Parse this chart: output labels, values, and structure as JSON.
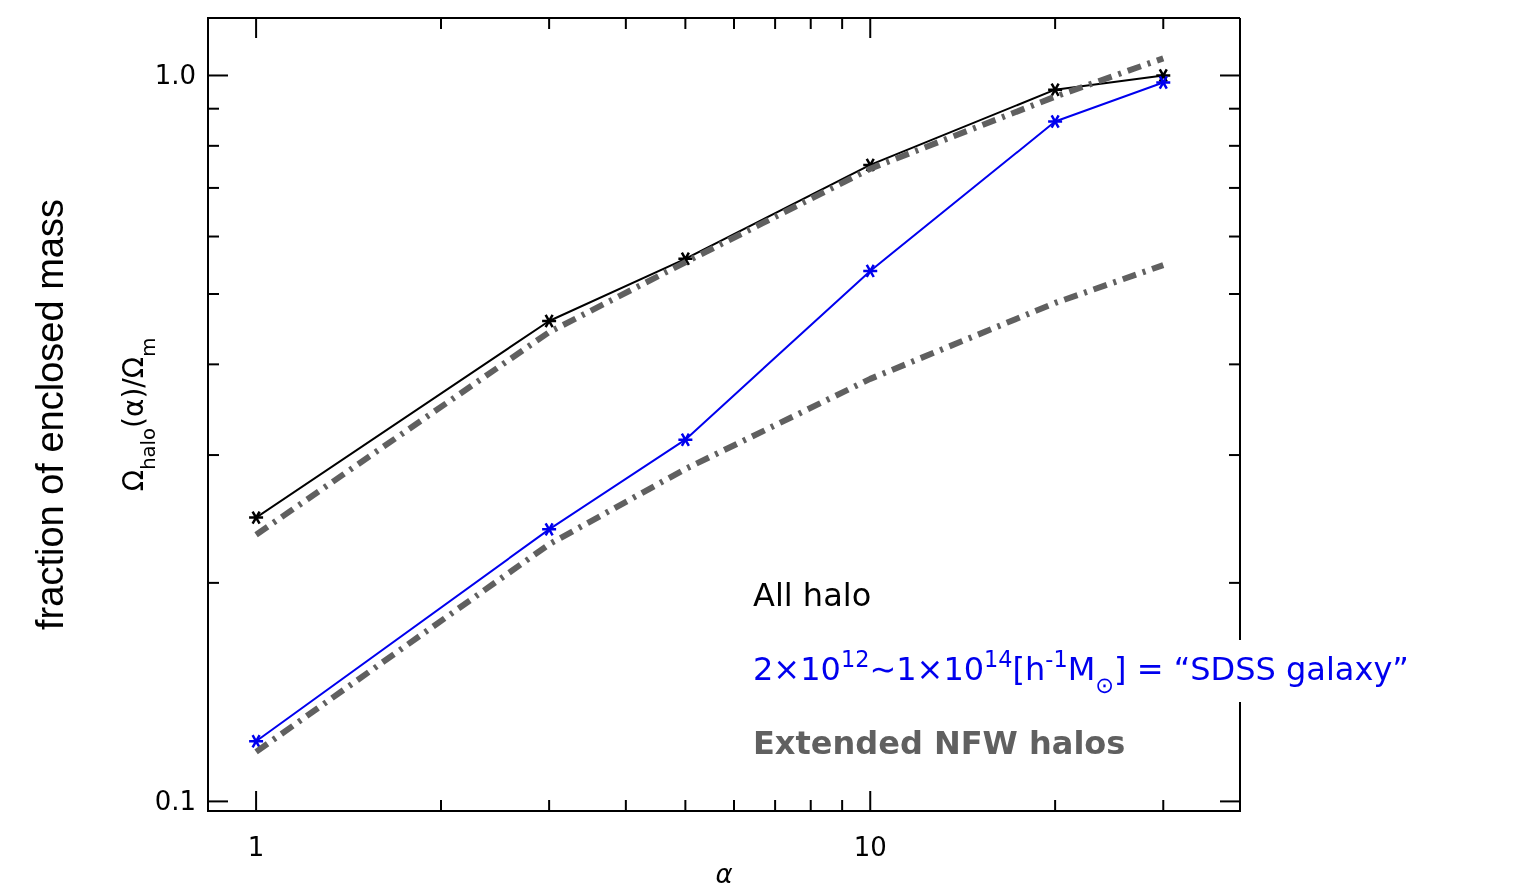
{
  "chart_data": {
    "type": "line",
    "xlabel": "α",
    "ylabel": "Ω$_{halo}$(α)/Ω$_{m}$",
    "log": "xy",
    "xlim": [
      0.835,
      40
    ],
    "ylim": [
      0.097,
      1.2
    ],
    "xticks": [
      1,
      {
        "value": 2,
        "label": null
      },
      {
        "value": 3,
        "label": null
      },
      {
        "value": 4,
        "label": null
      },
      {
        "value": 5,
        "label": null
      },
      {
        "value": 6,
        "label": null
      },
      {
        "value": 7,
        "label": null
      },
      {
        "value": 8,
        "label": null
      },
      {
        "value": 9,
        "label": null
      },
      10,
      {
        "value": 20,
        "label": null
      },
      {
        "value": 30,
        "label": null
      },
      {
        "value": 40,
        "label": null
      }
    ],
    "yticks": [
      {
        "value": 0.1,
        "label": "0.1"
      },
      {
        "value": 0.2,
        "label": null
      },
      {
        "value": 0.3,
        "label": null
      },
      {
        "value": 0.4,
        "label": null
      },
      {
        "value": 0.5,
        "label": null
      },
      {
        "value": 0.6,
        "label": null
      },
      {
        "value": 0.7,
        "label": null
      },
      {
        "value": 0.8,
        "label": null
      },
      {
        "value": 0.9,
        "label": null
      },
      {
        "value": 1,
        "label": "1.0"
      }
    ],
    "x": [
      1,
      3,
      5,
      10,
      20,
      30
    ],
    "series": [
      {
        "name": "All halo",
        "color": "#000000",
        "values": [
          0.246,
          0.459,
          0.559,
          0.753,
          0.956,
          1.0
        ],
        "marker": "cross",
        "line_style": "solid"
      },
      {
        "name": "2×10$^{12}$∼1×10$^{14}$[h$^{-1}$M$_{⊙}$] = “SDSS galaxy”",
        "color": "#0000ee",
        "values": [
          0.121,
          0.237,
          0.315,
          0.538,
          0.864,
          0.978
        ],
        "marker": "cross",
        "line_style": "solid"
      },
      {
        "name": "Extended NFW halos",
        "color": "#606060",
        "values": [
          0.233,
          0.443,
          0.553,
          0.744,
          0.935,
          1.056
        ],
        "marker": "none",
        "line_style": "dashdot"
      },
      {
        "color": "#606060",
        "values": [
          0.117,
          0.226,
          0.287,
          0.382,
          0.486,
          0.548
        ],
        "marker": "none",
        "line_style": "dashdot"
      }
    ],
    "legend": "bottom right",
    "grid": false,
    "annotations": [
      "fraction of enclosed mass"
    ]
  }
}
